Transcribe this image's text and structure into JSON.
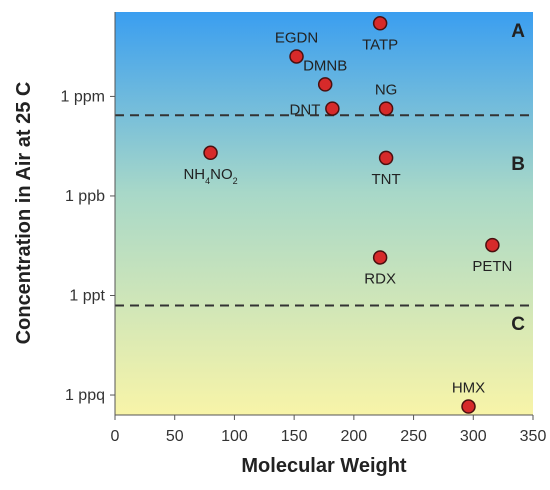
{
  "chart_data": {
    "type": "scatter",
    "xlabel": "Molecular Weight",
    "ylabel": "Concentration in Air at 25 C",
    "xlim": [
      0,
      350
    ],
    "x_ticks": [
      0,
      50,
      100,
      150,
      200,
      250,
      300,
      350
    ],
    "y_scale": "log",
    "y_ticks": [
      {
        "label": "1 ppq",
        "value": 1e-15
      },
      {
        "label": "1 ppt",
        "value": 1e-12
      },
      {
        "label": "1 ppb",
        "value": 1e-09
      },
      {
        "label": "1 ppm",
        "value": 1e-06
      }
    ],
    "ylim": [
      2.5e-16,
      0.00035
    ],
    "grid": false,
    "points": [
      {
        "label": "TATP",
        "sub": "",
        "x": 222,
        "y": 0.00016,
        "label_pos": "below"
      },
      {
        "label": "EGDN",
        "sub": "",
        "x": 152,
        "y": 1.6e-05,
        "label_pos": "above"
      },
      {
        "label": "DMNB",
        "sub": "",
        "x": 176,
        "y": 2.3e-06,
        "label_pos": "above"
      },
      {
        "label": "DNT",
        "sub": "",
        "x": 182,
        "y": 4.3e-07,
        "label_pos": "left"
      },
      {
        "label": "NG",
        "sub": "",
        "x": 227,
        "y": 4.3e-07,
        "label_pos": "above"
      },
      {
        "label": "NH",
        "sub": "4",
        "label2": "NO",
        "sub2": "2",
        "x": 80,
        "y": 2e-08,
        "label_pos": "below"
      },
      {
        "label": "TNT",
        "sub": "",
        "x": 227,
        "y": 1.4e-08,
        "label_pos": "below"
      },
      {
        "label": "PETN",
        "sub": "",
        "x": 316,
        "y": 3.3e-11,
        "label_pos": "below"
      },
      {
        "label": "RDX",
        "sub": "",
        "x": 222,
        "y": 1.4e-11,
        "label_pos": "below"
      },
      {
        "label": "HMX",
        "sub": "",
        "x": 296,
        "y": 4.5e-16,
        "label_pos": "above"
      }
    ],
    "dividers": [
      2.7e-07,
      5e-13
    ],
    "regions": [
      {
        "label": "A",
        "y": 0.0001
      },
      {
        "label": "B",
        "y": 1e-08
      },
      {
        "label": "C",
        "y": 1.5e-13
      }
    ],
    "colors": {
      "gradient_top": "#3a9ef0",
      "gradient_mid": "#a8d8c8",
      "gradient_bottom": "#f8f4a8",
      "marker_fill": "#d62a2a",
      "marker_stroke": "#4a1010",
      "divider": "#333333"
    }
  }
}
